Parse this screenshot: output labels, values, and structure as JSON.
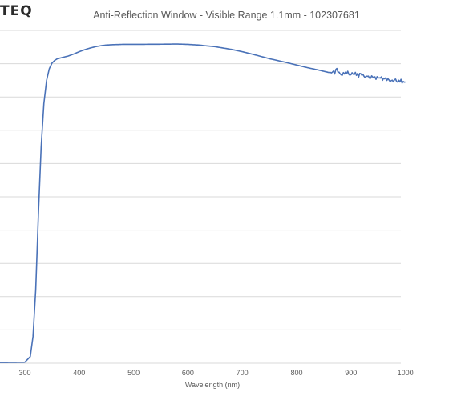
{
  "brand": {
    "logo_text": "TEQ"
  },
  "chart_data": {
    "type": "line",
    "title": "Anti-Reflection Window - Visible Range 1.1mm - 102307681",
    "xlabel": "Wavelength (nm)",
    "ylabel": "",
    "xlim": [
      250,
      1000
    ],
    "ylim": [
      0,
      100
    ],
    "x_ticks": [
      "300",
      "400",
      "500",
      "600",
      "700",
      "800",
      "900",
      "1000"
    ],
    "grid": true,
    "line_color": "#4a72b8",
    "series": [
      {
        "values": [
          [
            250,
            0.2
          ],
          [
            300,
            0.3
          ],
          [
            310,
            2
          ],
          [
            315,
            8
          ],
          [
            320,
            22
          ],
          [
            325,
            45
          ],
          [
            330,
            65
          ],
          [
            335,
            78
          ],
          [
            340,
            85
          ],
          [
            345,
            88.5
          ],
          [
            350,
            90.2
          ],
          [
            355,
            91.0
          ],
          [
            360,
            91.5
          ],
          [
            370,
            91.9
          ],
          [
            380,
            92.3
          ],
          [
            390,
            92.9
          ],
          [
            400,
            93.6
          ],
          [
            410,
            94.2
          ],
          [
            420,
            94.7
          ],
          [
            430,
            95.1
          ],
          [
            440,
            95.4
          ],
          [
            450,
            95.6
          ],
          [
            460,
            95.7
          ],
          [
            480,
            95.8
          ],
          [
            500,
            95.8
          ],
          [
            550,
            95.85
          ],
          [
            580,
            95.9
          ],
          [
            600,
            95.8
          ],
          [
            620,
            95.6
          ],
          [
            650,
            95.1
          ],
          [
            680,
            94.3
          ],
          [
            700,
            93.6
          ],
          [
            720,
            92.8
          ],
          [
            750,
            91.5
          ],
          [
            780,
            90.4
          ],
          [
            800,
            89.6
          ],
          [
            820,
            88.8
          ],
          [
            840,
            88.1
          ],
          [
            858,
            87.4
          ],
          [
            870,
            87.8
          ],
          [
            880,
            87.5
          ],
          [
            890,
            87.3
          ],
          [
            900,
            87.0
          ],
          [
            910,
            86.7
          ],
          [
            920,
            86.4
          ],
          [
            930,
            86.2
          ],
          [
            940,
            85.9
          ],
          [
            950,
            85.6
          ],
          [
            960,
            85.4
          ],
          [
            970,
            85.1
          ],
          [
            980,
            84.9
          ],
          [
            990,
            84.7
          ],
          [
            1000,
            84.5
          ]
        ]
      }
    ]
  }
}
